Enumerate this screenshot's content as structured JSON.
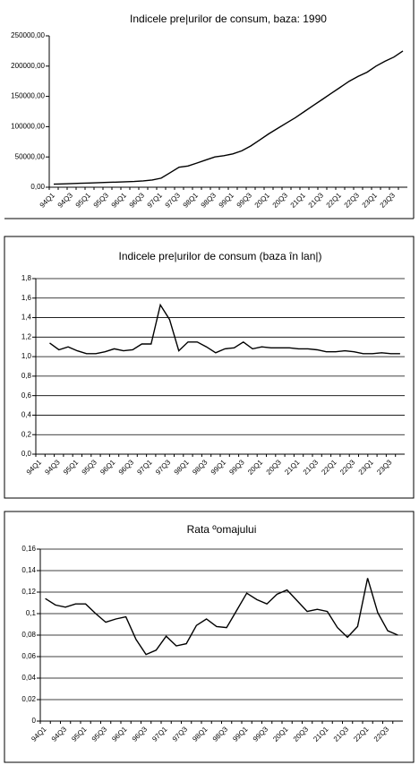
{
  "chart_data": [
    {
      "type": "line",
      "title": "Indicele pre|urilor de consum, baza: 1990",
      "categories": [
        "94Q1",
        null,
        "94Q3",
        null,
        "95Q1",
        null,
        "95Q3",
        null,
        "96Q1",
        null,
        "96Q3",
        null,
        "97Q1",
        null,
        "97Q3",
        null,
        "98Q1",
        null,
        "98Q3",
        null,
        "99Q1",
        null,
        "99Q3",
        null,
        "20Q1",
        null,
        "20Q3",
        null,
        "21Q1",
        null,
        "21Q3",
        null,
        "22Q1",
        null,
        "22Q3",
        null,
        "23Q1",
        null,
        "23Q3",
        null
      ],
      "values": [
        5000,
        5500,
        6000,
        6500,
        7000,
        7500,
        8000,
        8500,
        9000,
        9500,
        10500,
        12000,
        15000,
        24000,
        33000,
        35000,
        40000,
        45000,
        50000,
        52000,
        55000,
        60000,
        68000,
        78000,
        88000,
        97000,
        106000,
        115000,
        125000,
        135000,
        145000,
        155000,
        165000,
        175000,
        183000,
        190000,
        200000,
        208000,
        215000,
        225000
      ],
      "color": "#000000",
      "ylim": [
        0,
        250000
      ],
      "yticks": [
        {
          "value": 0,
          "label": "0,00"
        },
        {
          "value": 50000,
          "label": "50000,00"
        },
        {
          "value": 100000,
          "label": "100000,00"
        },
        {
          "value": 150000,
          "label": "150000,00"
        },
        {
          "value": 200000,
          "label": "200000,00"
        },
        {
          "value": 250000,
          "label": "250000,00"
        }
      ],
      "grid": false
    },
    {
      "type": "line",
      "title": "Indicele pre|urilor de consum (baza în lan|)",
      "categories": [
        "94Q1",
        null,
        "94Q3",
        null,
        "95Q1",
        null,
        "95Q3",
        null,
        "96Q1",
        null,
        "96Q3",
        null,
        "97Q1",
        null,
        "97Q3",
        null,
        "98Q1",
        null,
        "98Q3",
        null,
        "99Q1",
        null,
        "99Q3",
        null,
        "20Q1",
        null,
        "20Q3",
        null,
        "21Q1",
        null,
        "21Q3",
        null,
        "22Q1",
        null,
        "22Q3",
        null,
        "23Q1",
        null,
        "23Q3",
        null
      ],
      "values": [
        null,
        1.14,
        1.07,
        1.1,
        1.06,
        1.03,
        1.03,
        1.05,
        1.08,
        1.06,
        1.07,
        1.13,
        1.13,
        1.53,
        1.38,
        1.06,
        1.15,
        1.15,
        1.1,
        1.04,
        1.08,
        1.09,
        1.15,
        1.08,
        1.1,
        1.09,
        1.09,
        1.09,
        1.08,
        1.08,
        1.07,
        1.05,
        1.05,
        1.06,
        1.05,
        1.03,
        1.03,
        1.04,
        1.03,
        1.03
      ],
      "color": "#000000",
      "ylim": [
        0,
        1.8
      ],
      "yticks": [
        {
          "value": 0,
          "label": "0,0"
        },
        {
          "value": 0.2,
          "label": "0,2"
        },
        {
          "value": 0.4,
          "label": "0,4"
        },
        {
          "value": 0.6,
          "label": "0,6"
        },
        {
          "value": 0.8,
          "label": "0,8"
        },
        {
          "value": 1,
          "label": "1,0"
        },
        {
          "value": 1.2,
          "label": "1,2"
        },
        {
          "value": 1.4,
          "label": "1,4"
        },
        {
          "value": 1.6,
          "label": "1,6"
        },
        {
          "value": 1.8,
          "label": "1,8"
        }
      ],
      "grid": true
    },
    {
      "type": "line",
      "title": "Rata ºomajului",
      "categories": [
        "94Q1",
        null,
        "94Q3",
        null,
        "95Q1",
        null,
        "95Q3",
        null,
        "96Q1",
        null,
        "96Q3",
        null,
        "97Q1",
        null,
        "97Q3",
        null,
        "98Q1",
        null,
        "98Q3",
        null,
        "99Q1",
        null,
        "99Q3",
        null,
        "20Q1",
        null,
        "20Q3",
        null,
        "21Q1",
        null,
        "21Q3",
        null,
        "22Q1",
        null,
        "22Q3",
        null
      ],
      "values": [
        0.114,
        0.108,
        0.106,
        0.109,
        0.109,
        0.1,
        0.092,
        0.095,
        0.097,
        0.076,
        0.062,
        0.066,
        0.079,
        0.07,
        0.072,
        0.089,
        0.095,
        0.088,
        0.087,
        0.103,
        0.119,
        0.113,
        0.109,
        0.118,
        0.122,
        0.112,
        0.102,
        0.104,
        0.102,
        0.087,
        0.078,
        0.088,
        0.133,
        0.101,
        0.084,
        0.08
      ],
      "color": "#000000",
      "ylim": [
        0,
        0.16
      ],
      "yticks": [
        0,
        {
          "value": 0.02,
          "label": "0,02"
        },
        {
          "value": 0.04,
          "label": "0,04"
        },
        {
          "value": 0.06,
          "label": "0,06"
        },
        {
          "value": 0.08,
          "label": "0,08"
        },
        {
          "value": 0.1,
          "label": "0,1"
        },
        {
          "value": 0.12,
          "label": "0,12"
        },
        {
          "value": 0.14,
          "label": "0,14"
        },
        {
          "value": 0.16,
          "label": "0,16"
        }
      ],
      "grid": true
    }
  ]
}
